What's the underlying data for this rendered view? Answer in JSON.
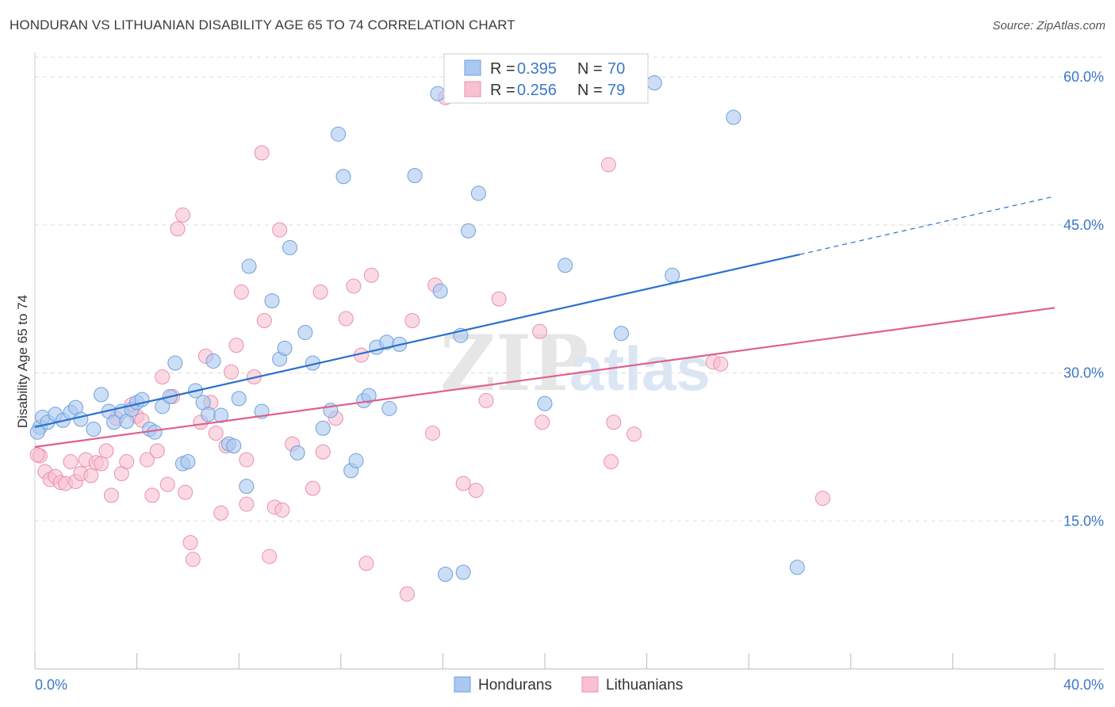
{
  "title": "HONDURAN VS LITHUANIAN DISABILITY AGE 65 TO 74 CORRELATION CHART",
  "source": "Source: ZipAtlas.com",
  "watermark": {
    "zip": "ZIP",
    "atlas": "atlas"
  },
  "colors": {
    "honduran_fill": "#aac8f0",
    "honduran_stroke": "#6fa0dc",
    "honduran_line": "#2a70cc",
    "lithuanian_fill": "#f8c0d0",
    "lithuanian_stroke": "#ea90ae",
    "lithuanian_line": "#e0608e",
    "tick_text": "#3c78c8",
    "grid": "#dddddd"
  },
  "legend": {
    "rows": [
      {
        "r_label": "R = ",
        "r_value": "0.395",
        "n_label": "N = ",
        "n_value": "70"
      },
      {
        "r_label": "R = ",
        "r_value": "0.256",
        "n_label": "N = ",
        "n_value": "79"
      }
    ]
  },
  "bottom_legend": [
    "Hondurans",
    "Lithuanians"
  ],
  "chart_data": {
    "type": "scatter",
    "title": "HONDURAN VS LITHUANIAN DISABILITY AGE 65 TO 74 CORRELATION CHART",
    "xlabel": "",
    "ylabel": "Disability Age 65 to 74",
    "xlim": [
      0,
      40
    ],
    "ylim": [
      0,
      62
    ],
    "x_tick_labels": [
      "0.0%",
      "40.0%"
    ],
    "y_ticks": [
      15,
      30,
      45,
      60
    ],
    "y_tick_labels": [
      "15.0%",
      "30.0%",
      "45.0%",
      "60.0%"
    ],
    "grid": true,
    "legend_position": "top-center",
    "series": [
      {
        "name": "Hondurans",
        "r": 0.395,
        "n": 70,
        "trend": {
          "x": [
            0,
            30
          ],
          "y": [
            24.5,
            42.0
          ],
          "dashed_to": [
            40,
            47.9
          ]
        },
        "points": [
          [
            0.2,
            24.5
          ],
          [
            0.3,
            25.5
          ],
          [
            0.5,
            25.0
          ],
          [
            0.8,
            25.8
          ],
          [
            1.1,
            25.2
          ],
          [
            1.4,
            26.0
          ],
          [
            1.6,
            26.5
          ],
          [
            1.8,
            25.3
          ],
          [
            2.3,
            24.3
          ],
          [
            2.6,
            27.8
          ],
          [
            2.9,
            26.1
          ],
          [
            3.1,
            25.0
          ],
          [
            3.4,
            26.1
          ],
          [
            3.6,
            25.1
          ],
          [
            3.8,
            26.3
          ],
          [
            4.0,
            27.0
          ],
          [
            4.2,
            27.3
          ],
          [
            4.5,
            24.3
          ],
          [
            4.7,
            24.0
          ],
          [
            5.0,
            26.6
          ],
          [
            5.3,
            27.6
          ],
          [
            5.5,
            31.0
          ],
          [
            5.8,
            20.8
          ],
          [
            6.0,
            21.0
          ],
          [
            6.3,
            28.2
          ],
          [
            6.6,
            27.0
          ],
          [
            6.8,
            25.8
          ],
          [
            7.0,
            31.2
          ],
          [
            7.3,
            25.7
          ],
          [
            7.6,
            22.8
          ],
          [
            7.8,
            22.6
          ],
          [
            8.0,
            27.4
          ],
          [
            8.3,
            18.5
          ],
          [
            8.4,
            40.8
          ],
          [
            8.9,
            26.1
          ],
          [
            9.3,
            37.3
          ],
          [
            9.6,
            31.4
          ],
          [
            9.8,
            32.5
          ],
          [
            10.0,
            42.7
          ],
          [
            10.3,
            21.9
          ],
          [
            10.6,
            34.1
          ],
          [
            10.9,
            31.0
          ],
          [
            11.3,
            24.4
          ],
          [
            11.6,
            26.2
          ],
          [
            11.9,
            54.2
          ],
          [
            12.1,
            49.9
          ],
          [
            12.4,
            20.1
          ],
          [
            12.6,
            21.1
          ],
          [
            12.9,
            27.2
          ],
          [
            13.1,
            27.7
          ],
          [
            13.4,
            32.6
          ],
          [
            13.8,
            33.1
          ],
          [
            13.9,
            26.4
          ],
          [
            14.3,
            32.9
          ],
          [
            14.9,
            50.0
          ],
          [
            15.8,
            58.3
          ],
          [
            15.9,
            38.3
          ],
          [
            16.1,
            9.6
          ],
          [
            16.7,
            33.8
          ],
          [
            16.8,
            9.8
          ],
          [
            17.4,
            48.2
          ],
          [
            17.0,
            44.4
          ],
          [
            20.0,
            26.9
          ],
          [
            20.8,
            40.9
          ],
          [
            23.0,
            34.0
          ],
          [
            24.3,
            59.4
          ],
          [
            25.0,
            39.9
          ],
          [
            27.4,
            55.9
          ],
          [
            29.9,
            10.3
          ],
          [
            0.1,
            24.0
          ]
        ]
      },
      {
        "name": "Lithuanians",
        "r": 0.256,
        "n": 79,
        "trend": {
          "x": [
            0,
            40
          ],
          "y": [
            22.5,
            36.6
          ]
        },
        "points": [
          [
            0.2,
            21.6
          ],
          [
            0.4,
            20.0
          ],
          [
            0.6,
            19.2
          ],
          [
            0.8,
            19.5
          ],
          [
            1.0,
            18.9
          ],
          [
            1.2,
            18.8
          ],
          [
            1.4,
            21.0
          ],
          [
            1.6,
            19.0
          ],
          [
            1.8,
            19.8
          ],
          [
            2.0,
            21.2
          ],
          [
            2.2,
            19.6
          ],
          [
            2.4,
            20.9
          ],
          [
            2.6,
            20.8
          ],
          [
            2.8,
            22.1
          ],
          [
            3.0,
            17.6
          ],
          [
            3.2,
            25.4
          ],
          [
            3.4,
            19.8
          ],
          [
            3.6,
            21.0
          ],
          [
            3.8,
            26.8
          ],
          [
            4.0,
            25.6
          ],
          [
            4.2,
            25.2
          ],
          [
            4.4,
            21.2
          ],
          [
            4.6,
            17.6
          ],
          [
            4.8,
            22.1
          ],
          [
            5.0,
            29.6
          ],
          [
            5.2,
            18.7
          ],
          [
            5.4,
            27.6
          ],
          [
            5.6,
            44.6
          ],
          [
            5.8,
            46.0
          ],
          [
            5.9,
            17.9
          ],
          [
            6.1,
            12.8
          ],
          [
            6.2,
            11.1
          ],
          [
            6.5,
            25.0
          ],
          [
            6.7,
            31.7
          ],
          [
            6.9,
            27.0
          ],
          [
            7.1,
            23.9
          ],
          [
            7.3,
            15.8
          ],
          [
            7.5,
            22.6
          ],
          [
            7.7,
            30.1
          ],
          [
            7.9,
            32.8
          ],
          [
            8.1,
            38.2
          ],
          [
            8.3,
            16.7
          ],
          [
            8.3,
            21.2
          ],
          [
            8.6,
            29.6
          ],
          [
            8.9,
            52.3
          ],
          [
            9.0,
            35.3
          ],
          [
            9.2,
            11.4
          ],
          [
            9.4,
            16.4
          ],
          [
            9.6,
            44.5
          ],
          [
            9.7,
            16.1
          ],
          [
            10.1,
            22.8
          ],
          [
            10.9,
            18.3
          ],
          [
            11.2,
            38.2
          ],
          [
            11.3,
            22.0
          ],
          [
            11.8,
            25.4
          ],
          [
            12.2,
            35.5
          ],
          [
            12.5,
            38.8
          ],
          [
            12.8,
            31.8
          ],
          [
            13.0,
            10.7
          ],
          [
            13.2,
            39.9
          ],
          [
            14.6,
            7.6
          ],
          [
            14.8,
            35.3
          ],
          [
            15.6,
            23.9
          ],
          [
            15.7,
            38.9
          ],
          [
            16.1,
            57.9
          ],
          [
            16.8,
            18.8
          ],
          [
            17.3,
            18.1
          ],
          [
            17.7,
            27.2
          ],
          [
            18.2,
            37.5
          ],
          [
            19.8,
            34.2
          ],
          [
            19.9,
            25.0
          ],
          [
            22.5,
            51.1
          ],
          [
            22.6,
            21.0
          ],
          [
            22.7,
            25.0
          ],
          [
            23.5,
            23.8
          ],
          [
            26.6,
            31.1
          ],
          [
            26.9,
            30.9
          ],
          [
            30.9,
            17.3
          ],
          [
            0.1,
            21.7
          ]
        ]
      }
    ]
  }
}
